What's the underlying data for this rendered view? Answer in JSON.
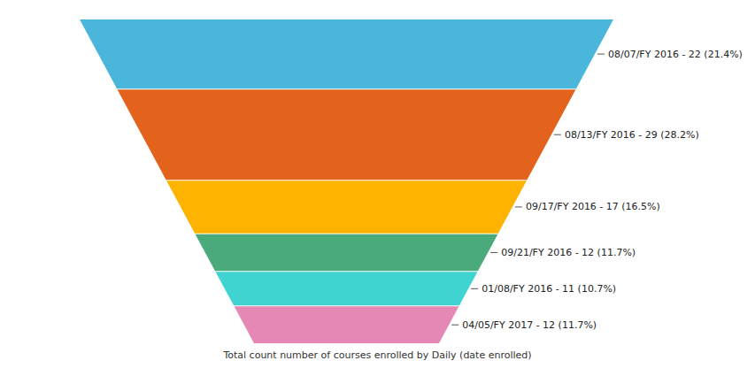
{
  "chart_data": {
    "type": "funnel",
    "title": "Total count number of courses enrolled by Daily (date enrolled)",
    "categories": [
      "08/07/FY 2016",
      "08/13/FY 2016",
      "09/17/FY 2016",
      "09/21/FY 2016",
      "01/08/FY 2016",
      "04/05/FY 2017"
    ],
    "values": [
      22,
      29,
      17,
      12,
      11,
      12
    ],
    "value_labels": [
      "08/07/FY 2016 - 22 (21.4%)",
      "08/13/FY 2016 - 29 (28.2%)",
      "09/17/FY 2016 - 17 (16.5%)",
      "09/21/FY 2016 - 12 (11.7%)",
      "01/08/FY 2016 - 11 (10.7%)",
      "04/05/FY 2017 - 12 (11.7%)"
    ],
    "colors": [
      "#4ab6dc",
      "#e3621c",
      "#fdb300",
      "#4aaa7b",
      "#3fd4d2",
      "#e688b5"
    ],
    "data_labels": true,
    "tick_labels": false
  }
}
